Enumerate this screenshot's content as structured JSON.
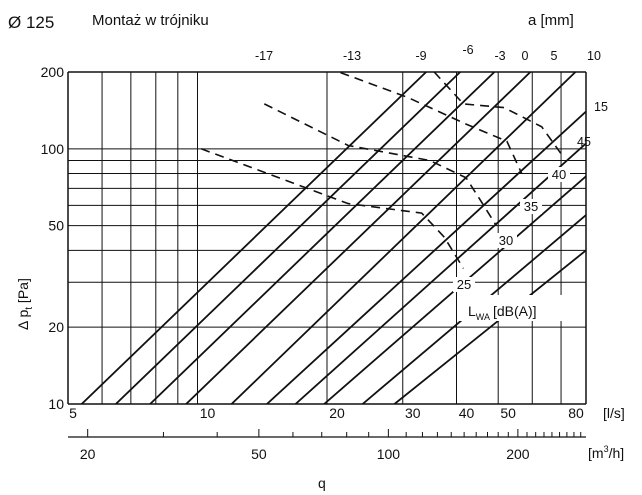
{
  "chart_data": {
    "type": "line",
    "diameter_label": "Ø 125",
    "title": "Montaż w trójniku",
    "x_scale": "log",
    "y_scale": "log",
    "xlim": [
      5,
      80
    ],
    "ylim": [
      10,
      200
    ],
    "x_ticks": [
      "5",
      "10",
      "20",
      "30",
      "40",
      "50",
      "80"
    ],
    "x_unit": "[l/s]",
    "x2_ticks": [
      "20",
      "50",
      "100",
      "200"
    ],
    "x2_unit": "[m3/h]",
    "xlabel": "q",
    "y_ticks": [
      "10",
      "20",
      "50",
      "100",
      "200"
    ],
    "ylabel": "Δ pt [Pa]",
    "damper_axis_label": "a [mm]",
    "damper_series": [
      {
        "name": "-17",
        "points": [
          [
            5.38,
            10
          ],
          [
            34.0,
            200
          ]
        ]
      },
      {
        "name": "-13",
        "points": [
          [
            6.46,
            10
          ],
          [
            40.8,
            200
          ]
        ]
      },
      {
        "name": "-9",
        "points": [
          [
            7.76,
            10
          ],
          [
            49.0,
            200
          ]
        ]
      },
      {
        "name": "-6",
        "points": [
          [
            9.41,
            10
          ],
          [
            59.4,
            200
          ]
        ]
      },
      {
        "name": "-3",
        "points": [
          [
            12.0,
            10
          ],
          [
            75.6,
            200
          ]
        ]
      },
      {
        "name": "0",
        "points": [
          [
            14.5,
            10
          ],
          [
            80,
            140
          ]
        ]
      },
      {
        "name": "5",
        "points": [
          [
            16.9,
            10
          ],
          [
            80,
            105
          ]
        ]
      },
      {
        "name": "10",
        "points": [
          [
            19.7,
            10
          ],
          [
            80,
            78
          ]
        ]
      },
      {
        "name": "15",
        "points": [
          [
            24.2,
            10
          ],
          [
            80,
            55
          ]
        ]
      },
      {
        "name": "45",
        "points": [
          [
            28.7,
            10
          ],
          [
            80,
            40
          ]
        ]
      }
    ],
    "damper_labels": [
      "-17",
      "-13",
      "-9",
      "-6",
      "-3",
      "0",
      "5",
      "10",
      "15",
      "45"
    ],
    "level_axis_label": "LWA [dB(A)]",
    "sound_levels": [
      {
        "name": "25",
        "points": [
          [
            10.2,
            100
          ],
          [
            22.4,
            61
          ],
          [
            33.2,
            56
          ],
          [
            37.5,
            45
          ],
          [
            41.5,
            34
          ]
        ]
      },
      {
        "name": "30",
        "points": [
          [
            14.3,
            150
          ],
          [
            22.4,
            103
          ],
          [
            34.7,
            90
          ],
          [
            42.1,
            77
          ],
          [
            45.7,
            62
          ],
          [
            49.5,
            50
          ]
        ]
      },
      {
        "name": "35",
        "points": [
          [
            21.5,
            199
          ],
          [
            30.8,
            159
          ],
          [
            42.1,
            125
          ],
          [
            52.4,
            107
          ],
          [
            56.7,
            80
          ]
        ]
      },
      {
        "name": "40",
        "points": [
          [
            35.5,
            200
          ],
          [
            41.5,
            150
          ],
          [
            51.6,
            145
          ],
          [
            63.1,
            122
          ],
          [
            70.2,
            95
          ]
        ]
      }
    ],
    "level_labels": [
      "25",
      "30",
      "35",
      "40"
    ],
    "grid": true
  },
  "labels": {
    "damper_unit": "a [mm]",
    "level_main": "L",
    "level_sub": "WA",
    "level_unit": "[dB(A)]",
    "y_main": "Δ p",
    "y_sub": "t",
    "y_unit": " [Pa]",
    "x2_unit_main": "[m",
    "x2_unit_sup": "3",
    "x2_unit_end": "/h]"
  }
}
